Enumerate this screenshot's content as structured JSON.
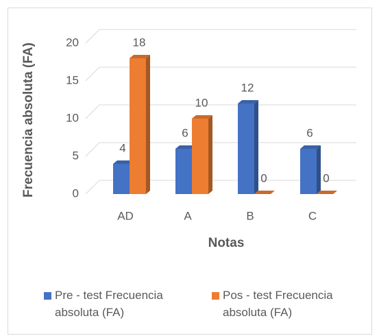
{
  "chart_data": {
    "type": "bar",
    "categories": [
      "AD",
      "A",
      "B",
      "C"
    ],
    "series": [
      {
        "name": "Pre - test Frecuencia absoluta (FA)",
        "color": "#4472c4",
        "values": [
          4,
          6,
          12,
          6
        ]
      },
      {
        "name": "Pos - test Frecuencia absoluta (FA)",
        "color": "#ed7d31",
        "values": [
          18,
          10,
          0,
          0
        ]
      }
    ],
    "ylim": [
      0,
      20
    ],
    "yticks": [
      0,
      5,
      10,
      15,
      20
    ],
    "grid": true,
    "x_label": "Notas",
    "y_label": "Frecuencia absoluta (FA)",
    "legend": "bottom"
  }
}
